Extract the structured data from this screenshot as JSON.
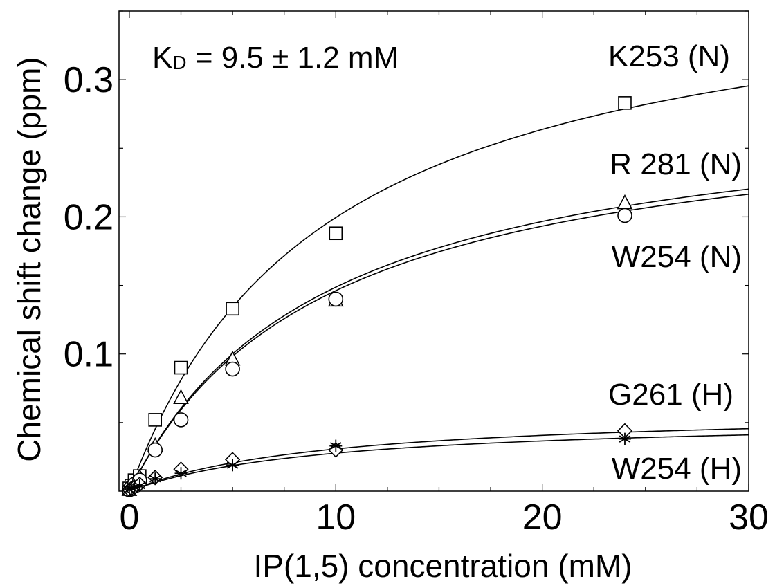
{
  "chart_data": {
    "type": "scatter",
    "title": "",
    "xlabel": "IP(1,5) concentration (mM)",
    "ylabel": "Chemical shift change (ppm)",
    "xlim": [
      -0.5,
      30
    ],
    "ylim": [
      0,
      0.35
    ],
    "x_ticks": [
      {
        "value": 0,
        "label": "0"
      },
      {
        "value": 10,
        "label": "10"
      },
      {
        "value": 20,
        "label": "20"
      },
      {
        "value": 30,
        "label": "30"
      }
    ],
    "y_ticks": [
      {
        "value": 0.1,
        "label": "0.1"
      },
      {
        "value": 0.2,
        "label": "0.2"
      },
      {
        "value": 0.3,
        "label": "0.3"
      }
    ],
    "x_minor_step": 2.5,
    "y_minor_step": 0.05,
    "grid": false,
    "legend": "none",
    "annotation": {
      "prefix": "K",
      "subscript": "D",
      "suffix": " = 9.5 ± 1.2 mM"
    },
    "fit_model": "one-site binding, KD = 9.5 mM",
    "series": [
      {
        "name": "K253 (N)",
        "marker": "square",
        "fit_max": 0.389,
        "x": [
          0,
          0.1,
          0.25,
          0.5,
          1.25,
          2.5,
          5,
          10,
          24
        ],
        "y": [
          0.002,
          0.004,
          0.008,
          0.011,
          0.052,
          0.09,
          0.133,
          0.188,
          0.283
        ]
      },
      {
        "name": "R 281 (N)",
        "marker": "triangle",
        "fit_max": 0.29,
        "x": [
          0,
          0.1,
          0.25,
          0.5,
          1.25,
          2.5,
          5,
          10,
          24
        ],
        "y": [
          0.001,
          0.003,
          0.006,
          0.01,
          0.033,
          0.068,
          0.096,
          0.139,
          0.21
        ]
      },
      {
        "name": "W254 (N)",
        "marker": "circle",
        "fit_max": 0.285,
        "x": [
          0,
          0.1,
          0.25,
          0.5,
          1.25,
          2.5,
          5,
          10,
          24
        ],
        "y": [
          0.001,
          0.003,
          0.005,
          0.008,
          0.03,
          0.052,
          0.089,
          0.14,
          0.201
        ]
      },
      {
        "name": "G261 (H)",
        "marker": "diamond",
        "fit_max": 0.06,
        "x": [
          0,
          0.1,
          0.25,
          0.5,
          1.25,
          2.5,
          5,
          10,
          24
        ],
        "y": [
          0.001,
          0.002,
          0.003,
          0.005,
          0.01,
          0.016,
          0.023,
          0.03,
          0.044
        ]
      },
      {
        "name": "W254 (H)",
        "marker": "asterisk",
        "fit_max": 0.054,
        "x": [
          0,
          0.1,
          0.25,
          0.5,
          1.25,
          2.5,
          5,
          10,
          24
        ],
        "y": [
          0.001,
          0.002,
          0.003,
          0.004,
          0.009,
          0.013,
          0.019,
          0.033,
          0.038
        ]
      }
    ]
  }
}
